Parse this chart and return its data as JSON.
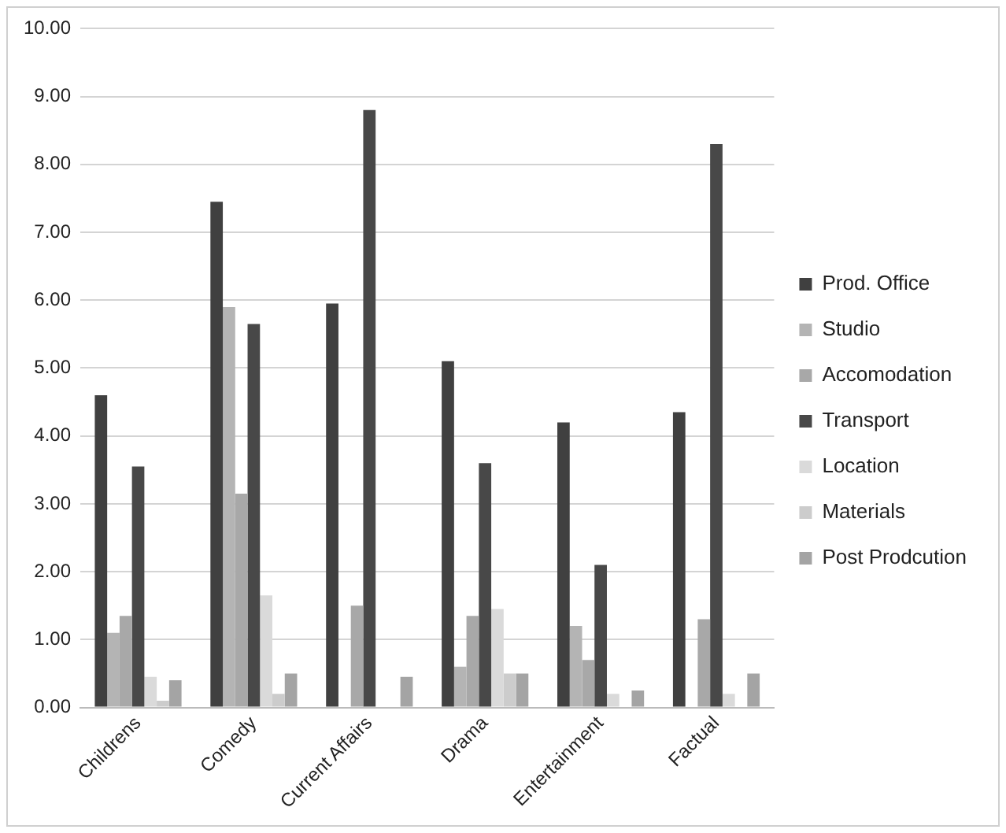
{
  "chart_data": {
    "type": "bar",
    "categories": [
      "Childrens",
      "Comedy",
      "Current Affairs",
      "Drama",
      "Entertainment",
      "Factual"
    ],
    "series": [
      {
        "name": "Prod. Office",
        "color": "#404040",
        "values": [
          4.6,
          7.45,
          5.95,
          5.1,
          4.2,
          4.35
        ]
      },
      {
        "name": "Studio",
        "color": "#b4b4b4",
        "values": [
          1.1,
          5.9,
          0,
          0.6,
          1.2,
          0
        ]
      },
      {
        "name": "Accomodation",
        "color": "#a8a8a8",
        "values": [
          1.35,
          3.15,
          1.5,
          1.35,
          0.7,
          1.3
        ]
      },
      {
        "name": "Transport",
        "color": "#484848",
        "values": [
          3.55,
          5.65,
          8.8,
          3.6,
          2.1,
          8.3
        ]
      },
      {
        "name": "Location",
        "color": "#dadada",
        "values": [
          0.45,
          1.65,
          null,
          1.45,
          0.2,
          0.2
        ]
      },
      {
        "name": "Materials",
        "color": "#cccccc",
        "values": [
          0.1,
          0.2,
          0,
          0.5,
          null,
          null
        ]
      },
      {
        "name": "Post Prodcution",
        "color": "#a4a4a4",
        "values": [
          0.4,
          0.5,
          0.45,
          0.5,
          0.25,
          0.5
        ]
      }
    ],
    "ylim": [
      0,
      10
    ],
    "yticks": [
      {
        "value": 0,
        "label": "0.00"
      },
      {
        "value": 1,
        "label": "1.00"
      },
      {
        "value": 2,
        "label": "2.00"
      },
      {
        "value": 3,
        "label": "3.00"
      },
      {
        "value": 4,
        "label": "4.00"
      },
      {
        "value": 5,
        "label": "5.00"
      },
      {
        "value": 6,
        "label": "6.00"
      },
      {
        "value": 7,
        "label": "7.00"
      },
      {
        "value": 8,
        "label": "8.00"
      },
      {
        "value": 9,
        "label": "9.00"
      },
      {
        "value": 10,
        "label": "10.00"
      }
    ],
    "grid": "y",
    "legend": "right"
  }
}
